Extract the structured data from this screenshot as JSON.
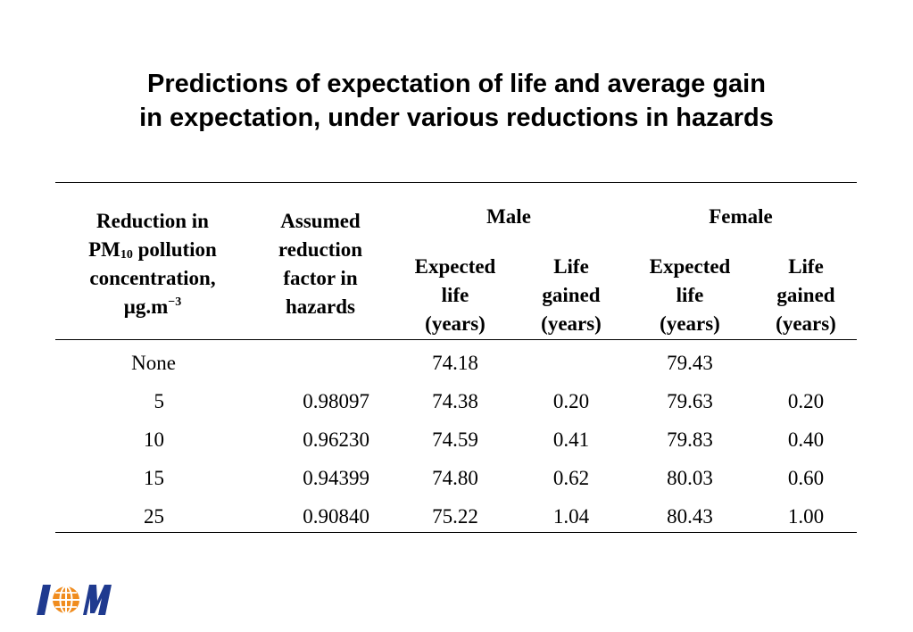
{
  "title": {
    "line1": "Predictions of expectation of life and average gain",
    "line2": "in expectation, under various reductions in hazards"
  },
  "table": {
    "col1_header": {
      "line1": "Reduction in",
      "line2_pm": "PM",
      "line2_sub": "10",
      "line2_rest": " pollution",
      "line3": "concentration,",
      "line4_unit": "μg.m",
      "line4_sup": "−3"
    },
    "col2_header": [
      "Assumed",
      "reduction",
      "factor in",
      "hazards"
    ],
    "group_male": "Male",
    "group_female": "Female",
    "male_expected_header": [
      "Expected",
      "life",
      "(years)"
    ],
    "male_gained_header": [
      "Life",
      "gained",
      "(years)"
    ],
    "female_expected_header": [
      "Expected",
      "life",
      "(years)"
    ],
    "female_gained_header": [
      "Life",
      "gained",
      "(years)"
    ],
    "rows": [
      {
        "reduction": "None",
        "factor": "",
        "male_life": "74.18",
        "male_gain": "",
        "female_life": "79.43",
        "female_gain": ""
      },
      {
        "reduction": "5",
        "factor": "0.98097",
        "male_life": "74.38",
        "male_gain": "0.20",
        "female_life": "79.63",
        "female_gain": "0.20"
      },
      {
        "reduction": "10",
        "factor": "0.96230",
        "male_life": "74.59",
        "male_gain": "0.41",
        "female_life": "79.83",
        "female_gain": "0.40"
      },
      {
        "reduction": "15",
        "factor": "0.94399",
        "male_life": "74.80",
        "male_gain": "0.62",
        "female_life": "80.03",
        "female_gain": "0.60"
      },
      {
        "reduction": "25",
        "factor": "0.90840",
        "male_life": "75.22",
        "male_gain": "1.04",
        "female_life": "80.43",
        "female_gain": "1.00"
      }
    ]
  },
  "logo": {
    "text": "IOM",
    "colors": {
      "letters": "#1f3a8f",
      "globe": "#f08c1e"
    }
  }
}
